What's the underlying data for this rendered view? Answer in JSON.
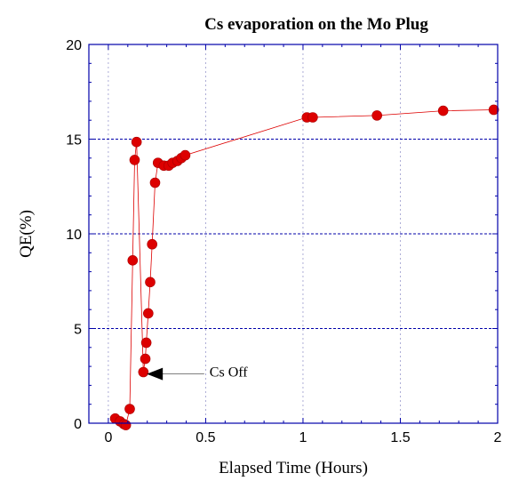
{
  "chart_data": {
    "type": "scatter",
    "title": "Cs evaporation on the Mo Plug",
    "xlabel": "Elapsed Time (Hours)",
    "ylabel": "QE(%)",
    "xlim": [
      -0.1,
      2.0
    ],
    "ylim": [
      0,
      20
    ],
    "xticks": [
      0,
      0.5,
      1,
      1.5,
      2
    ],
    "xtick_labels": [
      "0",
      "0.5",
      "1",
      "1.5",
      "2"
    ],
    "yticks": [
      0,
      5,
      10,
      15,
      20
    ],
    "ytick_labels": [
      "0",
      "5",
      "10",
      "15",
      "20"
    ],
    "grid": "dotted vertical at x ticks, dashed horizontal at y ticks",
    "colors": {
      "marker": "#dd0000",
      "line": "#dd0000",
      "axes": "#0000aa",
      "grid": "#0000aa"
    },
    "series": [
      {
        "style": "markers connected by thin line",
        "x": [
          0.035,
          0.06,
          0.08,
          0.09,
          0.11,
          0.125,
          0.135,
          0.145,
          0.18,
          0.19,
          0.195,
          0.205,
          0.215,
          0.225,
          0.24,
          0.255,
          0.285,
          0.31,
          0.33,
          0.355,
          0.375,
          0.395,
          1.02,
          1.05,
          1.38,
          1.72,
          1.98
        ],
        "y": [
          0.25,
          0.1,
          -0.05,
          -0.1,
          0.75,
          8.6,
          13.9,
          14.85,
          2.7,
          3.4,
          4.25,
          5.8,
          7.45,
          9.45,
          12.7,
          13.75,
          13.6,
          13.6,
          13.75,
          13.85,
          14.0,
          14.15,
          16.15,
          16.15,
          16.25,
          16.5,
          16.55
        ]
      }
    ],
    "annotations": [
      {
        "text": "Cs Off",
        "arrow_to": [
          0.17,
          2.6
        ],
        "text_at": [
          0.52,
          2.75
        ]
      }
    ]
  }
}
